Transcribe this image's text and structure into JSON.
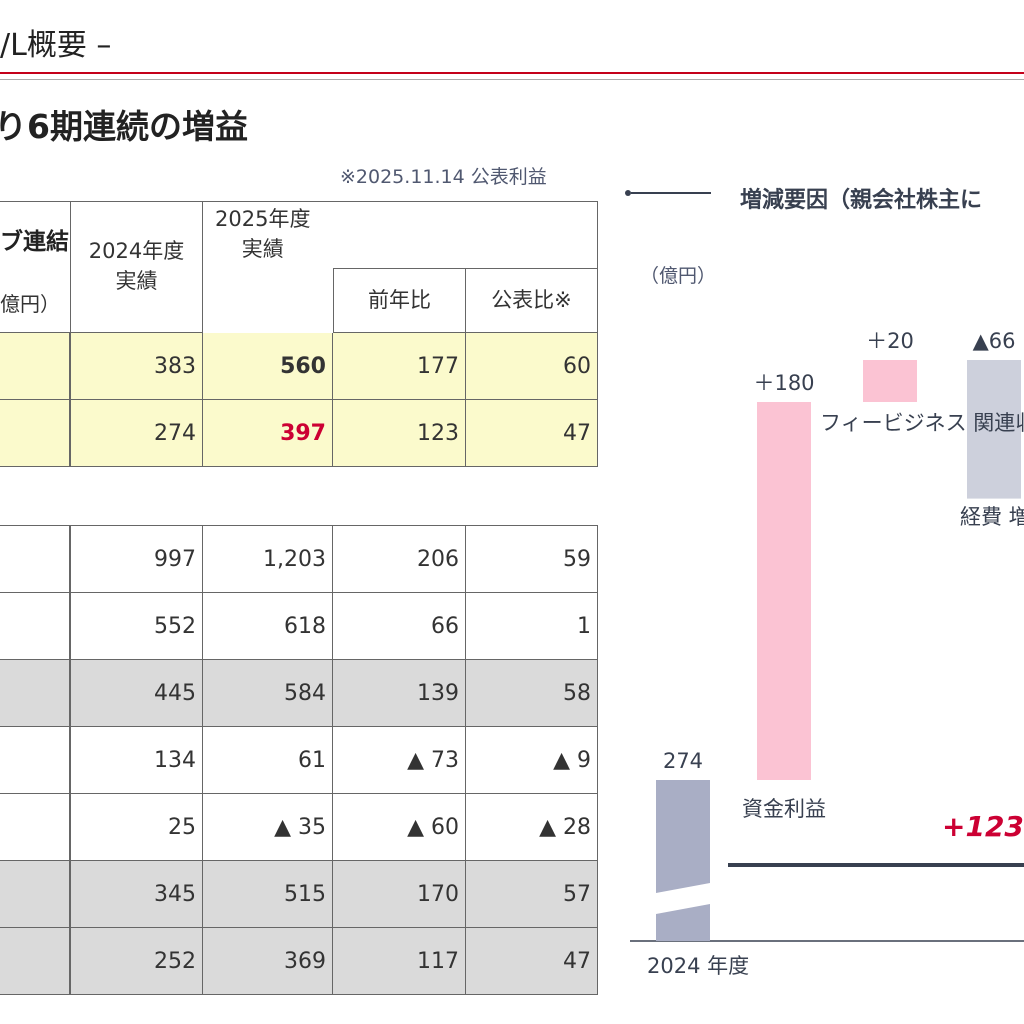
{
  "header": {
    "title": "/L概要 –",
    "subtitle": "り6期連続の増益",
    "note": "※2025.11.14 公表利益"
  },
  "table": {
    "corner_label": "ブ連結",
    "unit_label": "億円）",
    "col_2024": "2024年度\n実績",
    "col_2025": "2025年度\n実績",
    "col_yoy": "前年比",
    "col_plan": "公表比※",
    "top_rows": [
      [
        "383",
        "560",
        "177",
        "60"
      ],
      [
        "274",
        "397",
        "123",
        "47"
      ]
    ],
    "bottom_rows": [
      [
        "997",
        "1,203",
        "206",
        "59"
      ],
      [
        "552",
        "618",
        "66",
        "1"
      ],
      [
        "445",
        "584",
        "139",
        "58"
      ],
      [
        "134",
        "61",
        "▲ 73",
        "▲ 9"
      ],
      [
        "25",
        "▲ 35",
        "▲ 60",
        "▲ 28"
      ],
      [
        "345",
        "515",
        "170",
        "57"
      ],
      [
        "252",
        "369",
        "117",
        "47"
      ]
    ]
  },
  "chart": {
    "legend_title": "増減要因（親会社株主に",
    "unit": "（億円）",
    "total_change": "+123",
    "colors": {
      "base": "#a9aec5",
      "increase": "#fbc3d3",
      "decrease": "#cdd0dc",
      "accent": "#cc0033",
      "axis": "#384050"
    }
  },
  "chart_data": {
    "type": "waterfall",
    "title": "増減要因（親会社株主に",
    "ylabel": "（億円）",
    "steps": [
      {
        "label": "2024\n年度",
        "value": 274,
        "display": "274",
        "kind": "base"
      },
      {
        "label": "資金利益",
        "value": 180,
        "display": "＋180",
        "kind": "increase"
      },
      {
        "label": "フィービジネス\n関連収益",
        "value": 20,
        "display": "＋20",
        "kind": "increase"
      },
      {
        "label": "経費\n増加",
        "value": -66,
        "display": "▲66",
        "kind": "decrease"
      }
    ],
    "total_change": "+123"
  }
}
